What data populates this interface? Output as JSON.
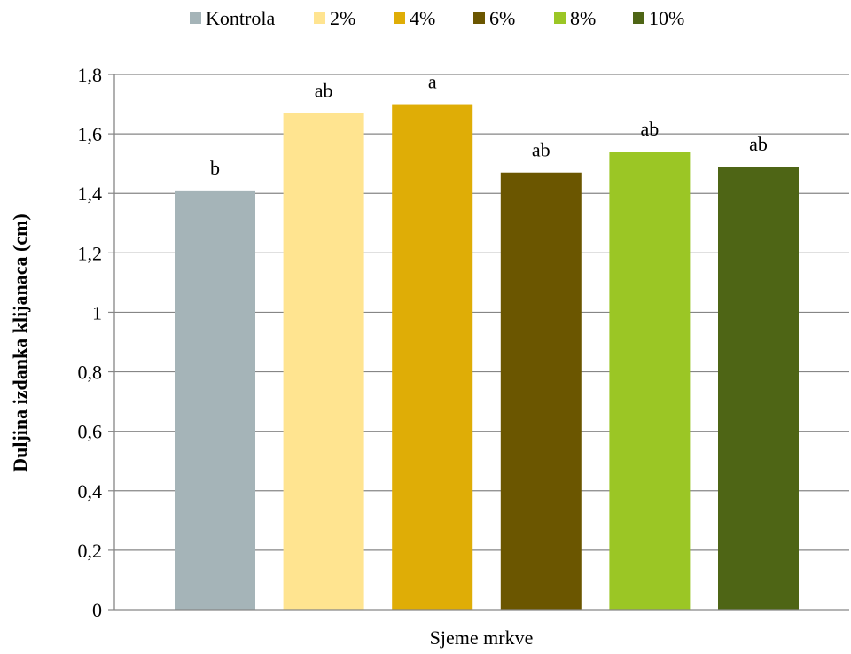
{
  "chart_data": {
    "type": "bar",
    "title": "",
    "xlabel": "Sjeme mrkve",
    "ylabel": "Duljina izdanka klijanaca (cm)",
    "ylim": [
      0,
      1.8
    ],
    "y_ticks": [
      "0",
      "0,2",
      "0,4",
      "0,6",
      "0,8",
      "1",
      "1,2",
      "1,4",
      "1,6",
      "1,8"
    ],
    "grid": true,
    "legend_position": "top",
    "categories": [
      "Sjeme mrkve"
    ],
    "series": [
      {
        "name": "Kontrola",
        "values": [
          1.41
        ],
        "color": "#A5B4B8",
        "label": "b"
      },
      {
        "name": "2%",
        "values": [
          1.67
        ],
        "color": "#FFE490",
        "label": "ab"
      },
      {
        "name": "4%",
        "values": [
          1.7
        ],
        "color": "#DFAD06",
        "label": "a"
      },
      {
        "name": "6%",
        "values": [
          1.47
        ],
        "color": "#6B5600",
        "label": "ab"
      },
      {
        "name": "8%",
        "values": [
          1.54
        ],
        "color": "#9BC625",
        "label": "ab"
      },
      {
        "name": "10%",
        "values": [
          1.49
        ],
        "color": "#4E6515",
        "label": "ab"
      }
    ]
  }
}
